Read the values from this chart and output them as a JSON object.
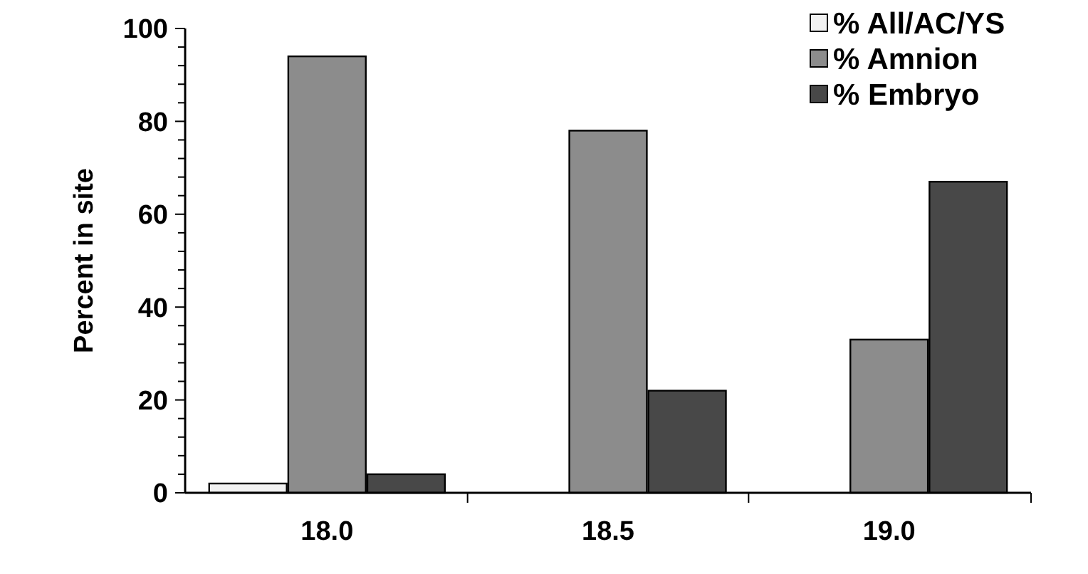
{
  "chart_data": {
    "type": "bar",
    "ylabel": "Percent in site",
    "categories": [
      "18.0",
      "18.5",
      "19.0"
    ],
    "series": [
      {
        "name": "% All/AC/YS",
        "color": "#f2f2f2",
        "values": [
          2,
          0,
          0
        ]
      },
      {
        "name": "% Amnion",
        "color": "#8c8c8c",
        "values": [
          94,
          78,
          33
        ]
      },
      {
        "name": "% Embryo",
        "color": "#484848",
        "values": [
          4,
          22,
          67
        ]
      }
    ],
    "ylim": [
      0,
      100
    ],
    "yticks": [
      0,
      {
        "value": 4,
        "label": null
      },
      {
        "value": 8,
        "label": null
      },
      {
        "value": 12,
        "label": null
      },
      {
        "value": 16,
        "label": null
      },
      20,
      {
        "value": 24,
        "label": null
      },
      {
        "value": 28,
        "label": null
      },
      {
        "value": 32,
        "label": null
      },
      {
        "value": 36,
        "label": null
      },
      40,
      {
        "value": 44,
        "label": null
      },
      {
        "value": 48,
        "label": null
      },
      {
        "value": 52,
        "label": null
      },
      {
        "value": 56,
        "label": null
      },
      60,
      {
        "value": 64,
        "label": null
      },
      {
        "value": 68,
        "label": null
      },
      {
        "value": 72,
        "label": null
      },
      {
        "value": 76,
        "label": null
      },
      80,
      {
        "value": 84,
        "label": null
      },
      {
        "value": 88,
        "label": null
      },
      {
        "value": 92,
        "label": null
      },
      {
        "value": 96,
        "label": null
      },
      100
    ],
    "grid": false,
    "legend": "top right"
  }
}
